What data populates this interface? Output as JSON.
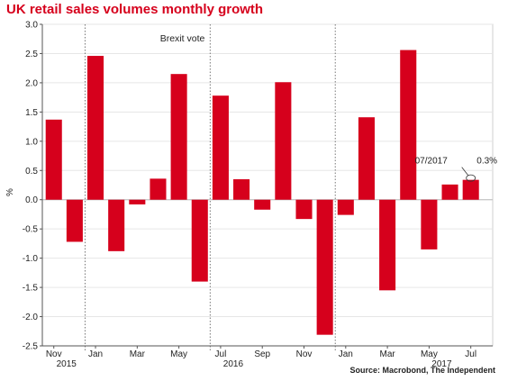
{
  "chart_data": {
    "type": "bar",
    "title": "UK retail sales volumes monthly growth",
    "ylabel": "%",
    "xlabel": "",
    "ylim": [
      -2.5,
      3.0
    ],
    "yticks": [
      "3.0",
      "2.5",
      "2.0",
      "1.5",
      "1.0",
      "0.5",
      "0.0",
      "-0.5",
      "-1.0",
      "-1.5",
      "-2.0",
      "-2.5"
    ],
    "yticks_values": [
      3.0,
      2.5,
      2.0,
      1.5,
      1.0,
      0.5,
      0.0,
      -0.5,
      -1.0,
      -1.5,
      -2.0,
      -2.5
    ],
    "grid": true,
    "bar_color": "#d6001c",
    "categories": [
      "Nov 2015",
      "Dec 2015",
      "Jan 2016",
      "Feb 2016",
      "Mar 2016",
      "Apr 2016",
      "May 2016",
      "Jun 2016",
      "Jul 2016",
      "Aug 2016",
      "Sep 2016",
      "Oct 2016",
      "Nov 2016",
      "Dec 2016",
      "Jan 2017",
      "Feb 2017",
      "Mar 2017",
      "Apr 2017",
      "May 2017",
      "Jun 2017",
      "Jul 2017"
    ],
    "values": [
      1.37,
      -0.72,
      2.46,
      -0.88,
      -0.08,
      0.36,
      2.15,
      -1.4,
      1.78,
      0.35,
      -0.17,
      2.01,
      -0.33,
      -2.31,
      -0.26,
      1.41,
      -1.55,
      2.56,
      -0.85,
      0.26,
      0.34
    ],
    "x_tick_labels": [
      {
        "index": 0,
        "month": "Nov",
        "year": "2015"
      },
      {
        "index": 2,
        "month": "Jan",
        "year": ""
      },
      {
        "index": 4,
        "month": "Mar",
        "year": ""
      },
      {
        "index": 6,
        "month": "May",
        "year": ""
      },
      {
        "index": 8,
        "month": "Jul",
        "year": "2016"
      },
      {
        "index": 10,
        "month": "Sep",
        "year": ""
      },
      {
        "index": 12,
        "month": "Nov",
        "year": ""
      },
      {
        "index": 14,
        "month": "Jan",
        "year": ""
      },
      {
        "index": 16,
        "month": "Mar",
        "year": ""
      },
      {
        "index": 18,
        "month": "May",
        "year": "2017"
      },
      {
        "index": 20,
        "month": "Jul",
        "year": ""
      }
    ],
    "vertical_markers": [
      {
        "after_index": 1,
        "label": ""
      },
      {
        "after_index": 7,
        "label": "Brexit vote"
      },
      {
        "after_index": 13,
        "label": ""
      }
    ],
    "annotation": {
      "index": 20,
      "label": "07/2017",
      "value_text": "0.3%"
    },
    "source": "Source: Macrobond, The Independent"
  }
}
